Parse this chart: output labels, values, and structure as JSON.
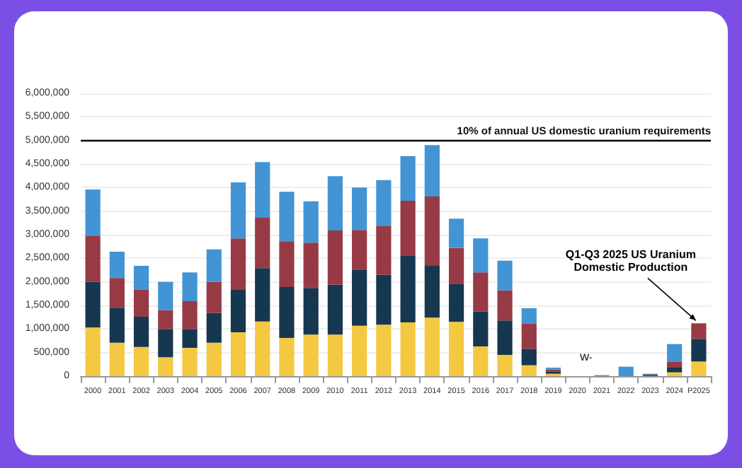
{
  "chart_data": {
    "type": "bar",
    "stacked": true,
    "categories": [
      "2000",
      "2001",
      "2002",
      "2003",
      "2004",
      "2005",
      "2006",
      "2007",
      "2008",
      "2009",
      "2010",
      "2011",
      "2012",
      "2013",
      "2014",
      "2015",
      "2016",
      "2017",
      "2018",
      "2019",
      "2020",
      "2021",
      "2022",
      "2023",
      "2024",
      "P2025"
    ],
    "series": [
      {
        "color": "#f5c842",
        "values": [
          1030000,
          710000,
          620000,
          400000,
          600000,
          710000,
          930000,
          1160000,
          810000,
          880000,
          880000,
          1070000,
          1090000,
          1140000,
          1240000,
          1150000,
          630000,
          450000,
          230000,
          50000,
          null,
          0,
          0,
          0,
          80000,
          310000
        ]
      },
      {
        "color": "#163750",
        "values": [
          970000,
          740000,
          640000,
          600000,
          400000,
          630000,
          900000,
          1130000,
          1080000,
          990000,
          1060000,
          1190000,
          1060000,
          1410000,
          1100000,
          800000,
          740000,
          730000,
          350000,
          50000,
          null,
          0,
          0,
          0,
          100000,
          480000
        ]
      },
      {
        "color": "#973a45",
        "values": [
          980000,
          630000,
          580000,
          400000,
          590000,
          660000,
          1090000,
          1070000,
          970000,
          960000,
          1150000,
          840000,
          1040000,
          1170000,
          1470000,
          770000,
          830000,
          640000,
          540000,
          40000,
          null,
          0,
          0,
          30000,
          130000,
          330000
        ]
      },
      {
        "color": "#4394d4",
        "values": [
          980000,
          560000,
          500000,
          600000,
          610000,
          690000,
          1190000,
          1180000,
          1050000,
          880000,
          1150000,
          900000,
          970000,
          950000,
          1090000,
          620000,
          720000,
          630000,
          320000,
          40000,
          null,
          20000,
          200000,
          20000,
          370000,
          null
        ]
      }
    ],
    "ylim": [
      0,
      6000000
    ],
    "yticks": [
      {
        "value": 0,
        "label": "0"
      },
      {
        "value": 500000,
        "label": "500,000"
      },
      {
        "value": 1000000,
        "label": "1,000,000"
      },
      {
        "value": 1500000,
        "label": "1,500,000"
      },
      {
        "value": 2000000,
        "label": "2,000,000"
      },
      {
        "value": 2500000,
        "label": "2,500,000"
      },
      {
        "value": 3000000,
        "label": "3,000,000"
      },
      {
        "value": 3500000,
        "label": "3,500,000"
      },
      {
        "value": 4000000,
        "label": "4,000,000"
      },
      {
        "value": 4500000,
        "label": "4,500,000"
      },
      {
        "value": 5000000,
        "label": "5,000,000"
      },
      {
        "value": 5500000,
        "label": "5,500,000"
      },
      {
        "value": 6000000,
        "label": "6,000,000"
      }
    ],
    "grid": "y",
    "ref_lines": [
      {
        "axis": "y",
        "value": 5000000,
        "label": "10% of annual US domestic uranium requirements",
        "color": "#000000",
        "line_style": "solid"
      }
    ],
    "annotations": [
      {
        "text": "Q1-Q3 2025 US Uranium Domestic Production",
        "x": "P2025",
        "y": 1120000
      },
      "W-"
    ]
  }
}
